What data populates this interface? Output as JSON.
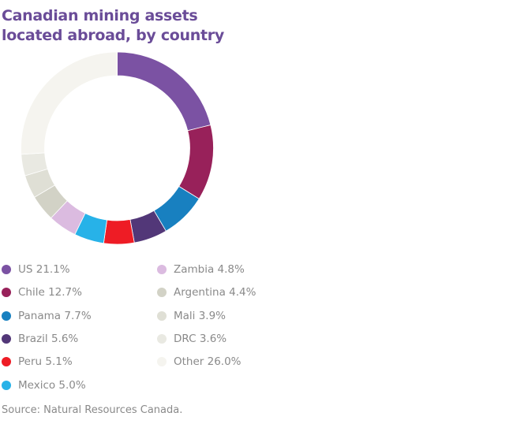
{
  "chart_data": {
    "type": "pie",
    "subtype": "donut",
    "title_lines": [
      "Canadian mining assets",
      "located abroad, by country"
    ],
    "unit": "%",
    "slices": [
      {
        "label": "US",
        "value": 21.1,
        "display": "US 21.1%",
        "color": "#7b52a3"
      },
      {
        "label": "Chile",
        "value": 12.7,
        "display": "Chile 12.7%",
        "color": "#98215a"
      },
      {
        "label": "Panama",
        "value": 7.7,
        "display": "Panama 7.7%",
        "color": "#1880c0"
      },
      {
        "label": "Brazil",
        "value": 5.6,
        "display": "Brazil 5.6%",
        "color": "#523778"
      },
      {
        "label": "Peru",
        "value": 5.1,
        "display": "Peru 5.1%",
        "color": "#ee1c25"
      },
      {
        "label": "Mexico",
        "value": 5.0,
        "display": "Mexico 5.0%",
        "color": "#27b2e8"
      },
      {
        "label": "Zambia",
        "value": 4.8,
        "display": "Zambia 4.8%",
        "color": "#dbbbe0"
      },
      {
        "label": "Argentina",
        "value": 4.4,
        "display": "Argentina 4.4%",
        "color": "#d2d2c6"
      },
      {
        "label": "Mali",
        "value": 3.9,
        "display": "Mali 3.9%",
        "color": "#dfdfd5"
      },
      {
        "label": "DRC",
        "value": 3.6,
        "display": "DRC 3.6%",
        "color": "#e9e9e2"
      },
      {
        "label": "Other",
        "value": 26.0,
        "display": "Other  26.0%",
        "color": "#f5f4ef"
      }
    ],
    "legend_position": "bottom",
    "source": "Source: Natural Resources Canada."
  }
}
